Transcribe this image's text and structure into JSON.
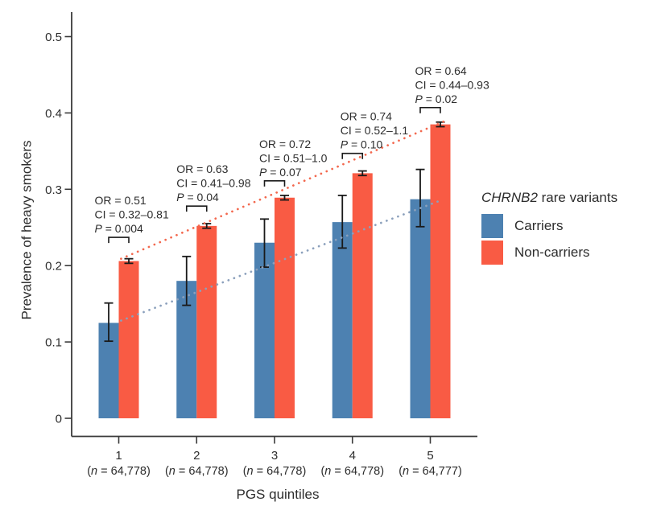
{
  "figure": {
    "background": "#ffffff",
    "y_axis_title": "Prevalence of heavy smokers",
    "x_axis_title": "PGS quintiles",
    "legend": {
      "title_gene": "CHRNB2",
      "title_rest": " rare variants",
      "items": [
        {
          "label": "Carriers",
          "color": "#4D81B1"
        },
        {
          "label": "Non-carriers",
          "color": "#F95B44"
        }
      ]
    }
  },
  "chart_data": {
    "type": "bar",
    "title": "",
    "xlabel": "PGS quintiles",
    "ylabel": "Prevalence of heavy smokers",
    "ylim": [
      0,
      0.5
    ],
    "grid": false,
    "legend_position": "right",
    "ytick_labels": [
      "0",
      "0.1",
      "0.2",
      "0.3",
      "0.4",
      "0.5"
    ],
    "ytick_values": [
      0,
      0.1,
      0.2,
      0.3,
      0.4,
      0.5
    ],
    "categories": [
      "1",
      "2",
      "3",
      "4",
      "5"
    ],
    "n_labels": [
      "(n = 64,778)",
      "(n = 64,778)",
      "(n = 64,778)",
      "(n = 64,778)",
      "(n = 64,777)"
    ],
    "series": [
      {
        "name": "Carriers",
        "color": "#4D81B1",
        "values": [
          0.125,
          0.18,
          0.23,
          0.257,
          0.287
        ],
        "ci_low": [
          0.101,
          0.148,
          0.198,
          0.223,
          0.251
        ],
        "ci_high": [
          0.151,
          0.212,
          0.261,
          0.292,
          0.326
        ]
      },
      {
        "name": "Non-carriers",
        "color": "#F95B44",
        "values": [
          0.206,
          0.252,
          0.289,
          0.321,
          0.385
        ],
        "ci_low": [
          0.203,
          0.249,
          0.286,
          0.318,
          0.382
        ],
        "ci_high": [
          0.209,
          0.255,
          0.292,
          0.324,
          0.388
        ]
      }
    ],
    "annotations": [
      {
        "or": "OR = 0.51",
        "ci": "CI = 0.32–0.81",
        "p": "P = 0.004",
        "bracket_value": 0.237,
        "dx": -30
      },
      {
        "or": "OR = 0.63",
        "ci": "CI = 0.41–0.98",
        "p": "P = 0.04",
        "bracket_value": 0.278,
        "dx": -25
      },
      {
        "or": "OR = 0.72",
        "ci": "CI = 0.51–1.0",
        "p": "P = 0.07",
        "bracket_value": 0.311,
        "dx": -19
      },
      {
        "or": "OR = 0.74",
        "ci": "CI = 0.52–1.1",
        "p": "P = 0.10",
        "bracket_value": 0.347,
        "dx": -15
      },
      {
        "or": "OR = 0.64",
        "ci": "CI = 0.44–0.93",
        "p": "P = 0.02",
        "bracket_value": 0.407,
        "dx": -19
      }
    ],
    "trend_lines": [
      {
        "series": "Carriers",
        "color": "#8BA0BC",
        "x_start_q": 1.03,
        "v_start": 0.128,
        "x_end_q": 5.15,
        "v_end": 0.286
      },
      {
        "series": "Non-carriers",
        "color": "#F3684E",
        "x_start_q": 1.03,
        "v_start": 0.209,
        "x_end_q": 5.2,
        "v_end": 0.39
      }
    ]
  }
}
